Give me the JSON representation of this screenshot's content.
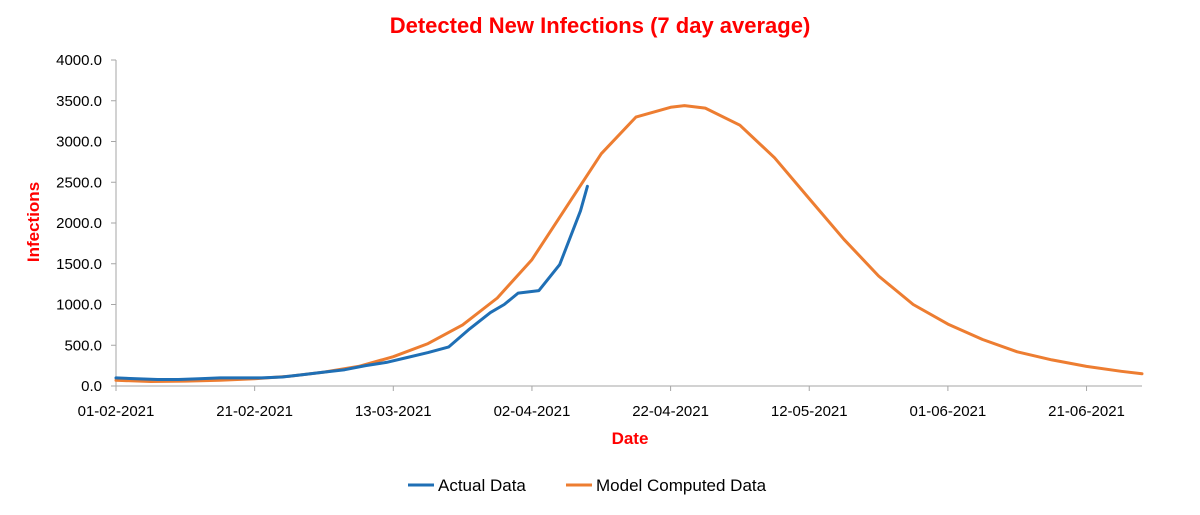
{
  "colors": {
    "title": "#ff0000",
    "axis_title": "#ff0000",
    "actual": "#1f6fb5",
    "model": "#ed7d31",
    "axis": "#a6a6a6",
    "text": "#000000"
  },
  "chart_data": {
    "type": "line",
    "title": "Detected New Infections (7 day average)",
    "xlabel": "Date",
    "ylabel": "Infections",
    "grid": false,
    "legend": "bottom",
    "x_unit": "days since 01-02-2021",
    "xlim": [
      0,
      148
    ],
    "ylim": [
      0,
      4000
    ],
    "y_ticks": [
      "0.0",
      "500.0",
      "1000.0",
      "1500.0",
      "2000.0",
      "2500.0",
      "3000.0",
      "3500.0",
      "4000.0"
    ],
    "x_ticks": [
      {
        "day": 0,
        "label": "01-02-2021"
      },
      {
        "day": 20,
        "label": "21-02-2021"
      },
      {
        "day": 40,
        "label": "13-03-2021"
      },
      {
        "day": 60,
        "label": "02-04-2021"
      },
      {
        "day": 80,
        "label": "22-04-2021"
      },
      {
        "day": 100,
        "label": "12-05-2021"
      },
      {
        "day": 120,
        "label": "01-06-2021"
      },
      {
        "day": 140,
        "label": "21-06-2021"
      }
    ],
    "series": [
      {
        "name": "Actual Data",
        "color_key": "actual",
        "x": [
          0,
          3,
          6,
          9,
          12,
          15,
          18,
          21,
          24,
          27,
          30,
          33,
          36,
          39,
          42,
          45,
          48,
          51,
          54,
          56,
          58,
          61,
          64,
          67,
          68
        ],
        "y": [
          100,
          90,
          80,
          80,
          90,
          100,
          100,
          100,
          110,
          140,
          170,
          200,
          250,
          290,
          350,
          410,
          480,
          700,
          900,
          1000,
          1140,
          1170,
          1490,
          2150,
          2450
        ]
      },
      {
        "name": "Model Computed Data",
        "color_key": "model",
        "x": [
          0,
          5,
          10,
          15,
          20,
          25,
          30,
          35,
          40,
          45,
          50,
          55,
          60,
          65,
          70,
          75,
          80,
          82,
          85,
          90,
          95,
          100,
          105,
          110,
          115,
          120,
          125,
          130,
          135,
          140,
          145,
          148
        ],
        "y": [
          70,
          55,
          60,
          70,
          90,
          120,
          170,
          240,
          360,
          520,
          750,
          1080,
          1550,
          2200,
          2850,
          3300,
          3420,
          3440,
          3410,
          3200,
          2800,
          2300,
          1800,
          1350,
          1000,
          760,
          570,
          420,
          320,
          240,
          180,
          150
        ]
      }
    ]
  }
}
